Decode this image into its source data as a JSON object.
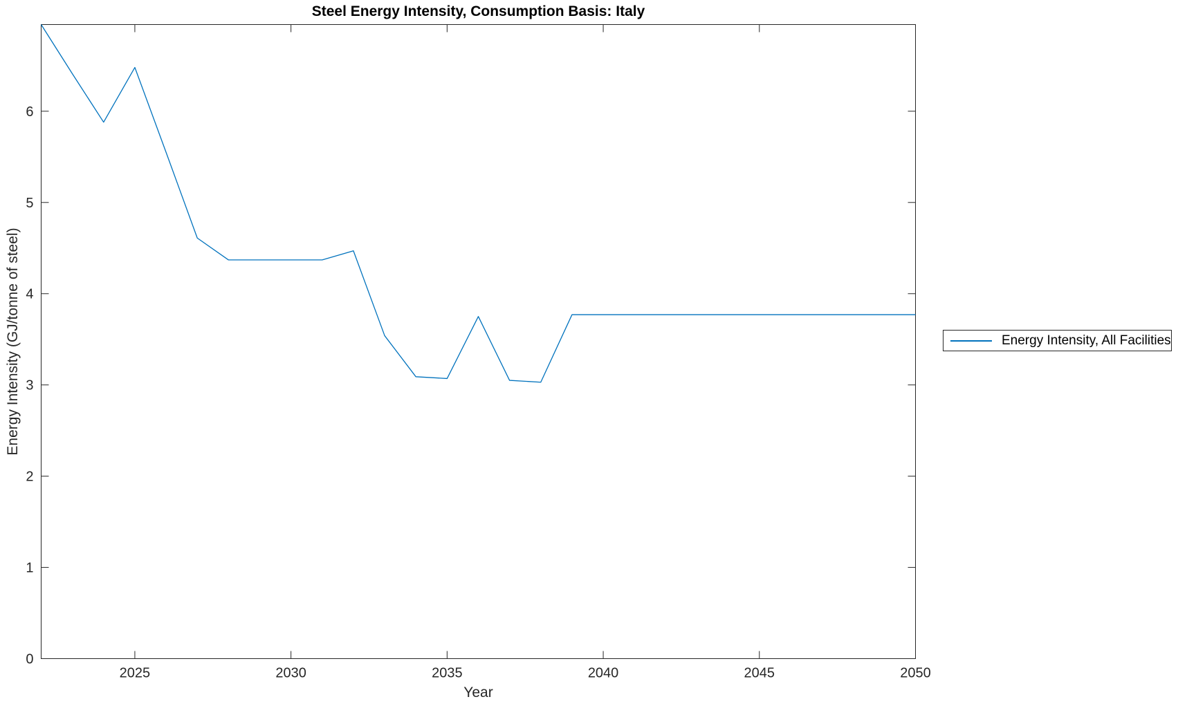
{
  "figure": {
    "background": "#ffffff",
    "axis_color": "#262626",
    "text_color": "#262626",
    "title_color": "#000000"
  },
  "chart_data": {
    "type": "line",
    "title": "Steel Energy Intensity, Consumption Basis: Italy",
    "xlabel": "Year",
    "ylabel": "Energy Intensity (GJ/tonne of steel)",
    "xlim": [
      2022,
      2050
    ],
    "ylim": [
      0,
      6.95
    ],
    "x_ticks": [
      "2025",
      "2030",
      "2035",
      "2040",
      "2045",
      "2050"
    ],
    "y_ticks": [
      "0",
      "1",
      "2",
      "3",
      "4",
      "5",
      "6"
    ],
    "grid": false,
    "legend_position": "right-outside",
    "series": [
      {
        "name": "Energy Intensity, All Facilities",
        "color": "#0072BD",
        "x": [
          2022,
          2023,
          2024,
          2025,
          2026,
          2027,
          2028,
          2029,
          2030,
          2031,
          2032,
          2033,
          2034,
          2035,
          2036,
          2037,
          2038,
          2039,
          2040,
          2041,
          2042,
          2043,
          2044,
          2045,
          2046,
          2047,
          2048,
          2049,
          2050
        ],
        "y": [
          6.95,
          6.41,
          5.88,
          6.48,
          5.55,
          4.61,
          4.37,
          4.37,
          4.37,
          4.37,
          4.47,
          3.54,
          3.09,
          3.07,
          3.75,
          3.05,
          3.03,
          3.77,
          3.77,
          3.77,
          3.77,
          3.77,
          3.77,
          3.77,
          3.77,
          3.77,
          3.77,
          3.77,
          3.77
        ]
      }
    ]
  },
  "legend": {
    "entries": [
      {
        "label": "Energy Intensity, All Facilities",
        "color": "#0072BD"
      }
    ]
  }
}
